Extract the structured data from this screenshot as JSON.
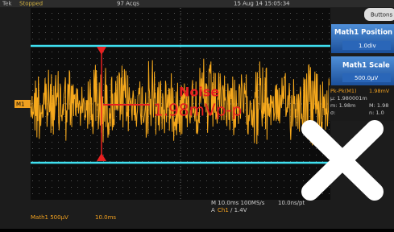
{
  "header": {
    "brand": "Tek",
    "status": "Stopped",
    "acquisitions": "97 Acqs",
    "datetime": "15 Aug 14 15:05:34",
    "menu": "Buttons"
  },
  "side_panel": {
    "position_label": "Math1 Position",
    "position_value": "1.0div",
    "scale_label": "Math1 Scale",
    "scale_value": "500.0µV"
  },
  "measurement": {
    "lines": [
      [
        "Pk-Pk(M1)",
        "1.98mV"
      ],
      [
        "µ: 1.980001m",
        ""
      ],
      [
        "m: 1.98m",
        "M: 1.98"
      ],
      [
        "σ:",
        "n: 1.0"
      ]
    ]
  },
  "channel_marker": "M1",
  "annotation": {
    "title": "Noise",
    "value": "1.98mVp-p"
  },
  "timebase": {
    "line1": "M 10.0ms 100MS/s",
    "line1b": "10.0ns/pt",
    "line2_prefix": "A",
    "line2_channel": "Ch1",
    "line2_suffix": "/ 1.4V"
  },
  "footer": {
    "math": "Math1  500µV",
    "time": "10.0ms"
  }
}
